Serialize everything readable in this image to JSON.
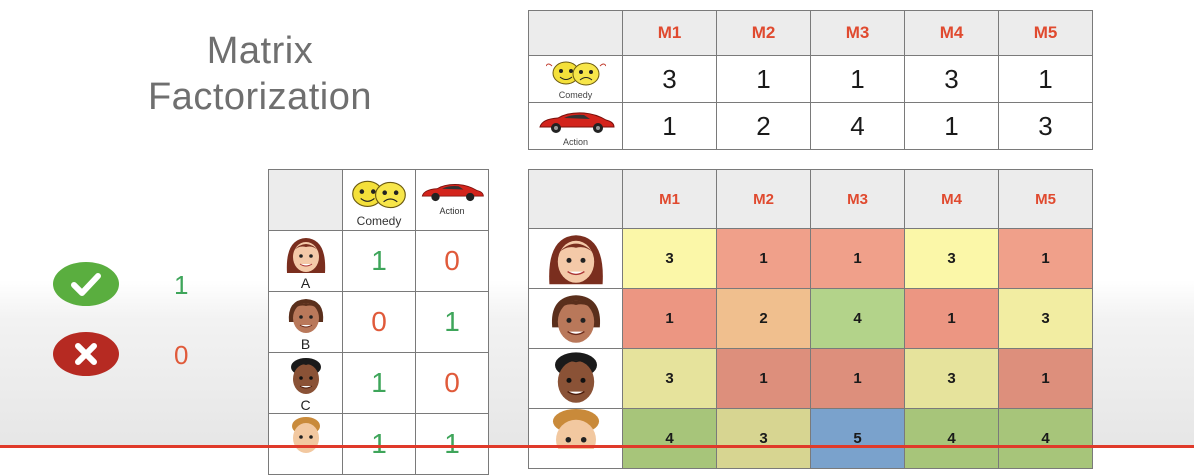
{
  "title": {
    "line1": "Matrix",
    "line2": "Factorization"
  },
  "genres": {
    "comedy": "Comedy",
    "action": "Action"
  },
  "movies": [
    "M1",
    "M2",
    "M3",
    "M4",
    "M5"
  ],
  "genre_matrix": {
    "comedy": [
      "3",
      "1",
      "1",
      "3",
      "1"
    ],
    "action": [
      "1",
      "2",
      "4",
      "1",
      "3"
    ]
  },
  "users": [
    {
      "label": "A",
      "comedy": "1",
      "action": "0"
    },
    {
      "label": "B",
      "comedy": "0",
      "action": "1"
    },
    {
      "label": "C",
      "comedy": "1",
      "action": "0"
    },
    {
      "label": "",
      "comedy": "1",
      "action": "1"
    }
  ],
  "ratings": [
    [
      "3",
      "1",
      "1",
      "3",
      "1"
    ],
    [
      "1",
      "2",
      "4",
      "1",
      "3"
    ],
    [
      "3",
      "1",
      "1",
      "3",
      "1"
    ],
    [
      "4",
      "3",
      "5",
      "4",
      "4"
    ]
  ],
  "rating_colors": {
    "1": "#ef9a86",
    "2": "#f3c495",
    "3": "#f5f0a8",
    "4": "#b9d98d",
    "5": "#7aa7d6"
  },
  "row_tint": [
    "#fbf7a8",
    "#f0a08a",
    "#e6e49c",
    "#a9c77c"
  ],
  "legend": {
    "yes_value": "1",
    "no_value": "0",
    "yes_color": "#5aae3f",
    "no_color": "#b62a22"
  },
  "accent_color": "#e04a2f"
}
